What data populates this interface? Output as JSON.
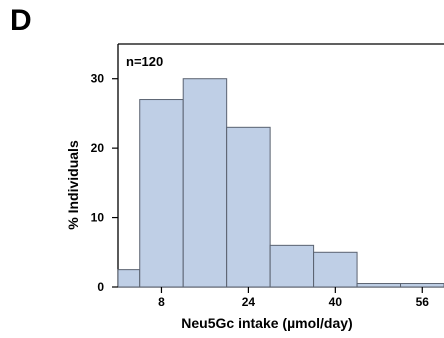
{
  "panel_label": "D",
  "chart_data": {
    "type": "bar",
    "annotation": "n=120",
    "xlabel": "Neu5Gc intake (µmol/day)",
    "ylabel": "% Individuals",
    "bin_edges": [
      0,
      4,
      12,
      20,
      28,
      36,
      44,
      52,
      60
    ],
    "values": [
      2.5,
      27,
      30,
      23,
      6,
      5,
      0.5,
      0.5
    ],
    "xticks": [
      8,
      24,
      40,
      56
    ],
    "yticks": [
      0,
      10,
      20,
      30
    ],
    "xlim": [
      0,
      60
    ],
    "ylim": [
      0,
      35
    ],
    "bar_color": "#bfcfe6",
    "bar_edge_color": "#5a6270",
    "grid": false
  }
}
